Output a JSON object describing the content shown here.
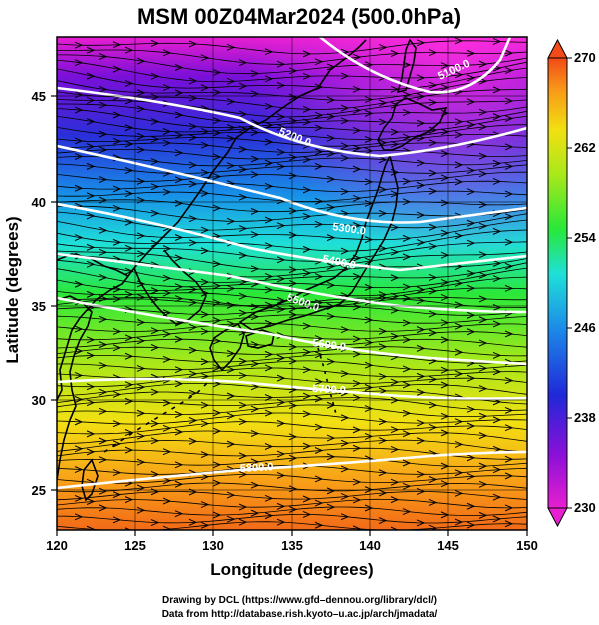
{
  "title": "MSM 00Z04Mar2024 (500.0hPa)",
  "x_axis": {
    "label": "Longitude (degrees)",
    "ticks": [
      "120",
      "125",
      "130",
      "135",
      "140",
      "145",
      "150"
    ]
  },
  "y_axis": {
    "label": "Latitude  (degrees)",
    "ticks": [
      "45",
      "40",
      "35",
      "30",
      "25"
    ]
  },
  "colorbar": {
    "min": 230,
    "max": 270,
    "ticks": [
      "270",
      "262",
      "254",
      "246",
      "238",
      "230"
    ]
  },
  "contours": [
    {
      "label": "5100.0",
      "value": 5100
    },
    {
      "label": "5200.0",
      "value": 5200
    },
    {
      "label": "5300.0",
      "value": 5300
    },
    {
      "label": "5400.0",
      "value": 5400
    },
    {
      "label": "5500.0",
      "value": 5500
    },
    {
      "label": "5600.0",
      "value": 5600
    },
    {
      "label": "5700.0",
      "value": 5700
    },
    {
      "label": "5800.0",
      "value": 5800
    }
  ],
  "credits": {
    "line1": "Drawing by DCL (https://www.gfd–dennou.org/library/dcl/)",
    "line2": "Data from http://database.rish.kyoto–u.ac.jp/arch/jmadata/"
  },
  "chart_data": {
    "type": "heatmap",
    "title": "MSM 00Z04Mar2024 (500.0hPa)",
    "xlabel": "Longitude (degrees)",
    "ylabel": "Latitude  (degrees)",
    "xlim": [
      120,
      150
    ],
    "ylim": [
      22.4,
      47.6
    ],
    "x_ticks": [
      120,
      125,
      130,
      135,
      140,
      145,
      150
    ],
    "y_ticks": [
      25,
      30,
      35,
      40,
      45
    ],
    "color_range": [
      230,
      270
    ],
    "colorbar_ticks": [
      230,
      238,
      246,
      254,
      262,
      270
    ],
    "contour_levels": [
      5100,
      5200,
      5300,
      5400,
      5500,
      5600,
      5700,
      5800
    ],
    "grid": true
  }
}
